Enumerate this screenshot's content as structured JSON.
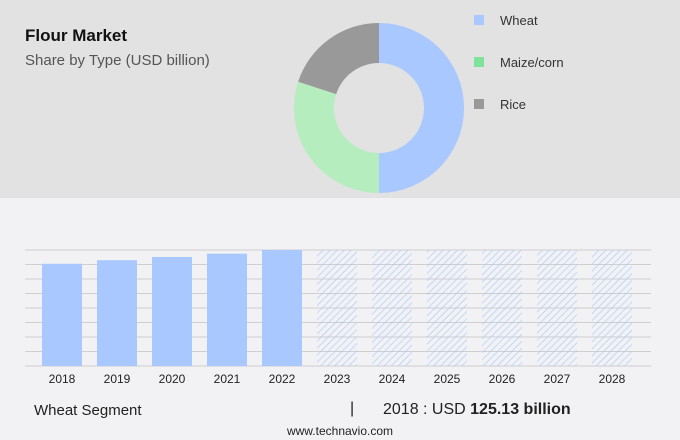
{
  "header": {
    "title": "Flour Market",
    "subtitle": "Share by Type (USD billion)"
  },
  "legend": [
    {
      "label": "Wheat",
      "color": "#a8c8ff"
    },
    {
      "label": "Maize/corn",
      "color": "#7ee39a"
    },
    {
      "label": "Rice",
      "color": "#999999"
    }
  ],
  "footer": {
    "segment": "Wheat Segment",
    "separator": "|",
    "year_label": "2018 : USD ",
    "value_label": "125.13 billion",
    "source": "www.technavio.com"
  },
  "chart_data": [
    {
      "type": "pie",
      "title": "Flour Market - Share by Type (USD billion)",
      "donut": true,
      "categories": [
        "Wheat",
        "Maize/corn",
        "Rice"
      ],
      "values": [
        50,
        30,
        20
      ],
      "colors": [
        "#a8c8ff",
        "#b5edbf",
        "#999999"
      ],
      "legend_position": "right"
    },
    {
      "type": "bar",
      "title": "Wheat Segment",
      "categories": [
        "2018",
        "2019",
        "2020",
        "2021",
        "2022",
        "2023",
        "2024",
        "2025",
        "2026",
        "2027",
        "2028"
      ],
      "values": [
        125.13,
        129.5,
        133.5,
        137.5,
        142,
        null,
        null,
        null,
        null,
        null,
        null
      ],
      "forecast": [
        false,
        false,
        false,
        false,
        false,
        true,
        true,
        true,
        true,
        true,
        true
      ],
      "xlabel": "",
      "ylabel": "",
      "grid": true,
      "annotation": "2018 : USD 125.13 billion"
    }
  ]
}
